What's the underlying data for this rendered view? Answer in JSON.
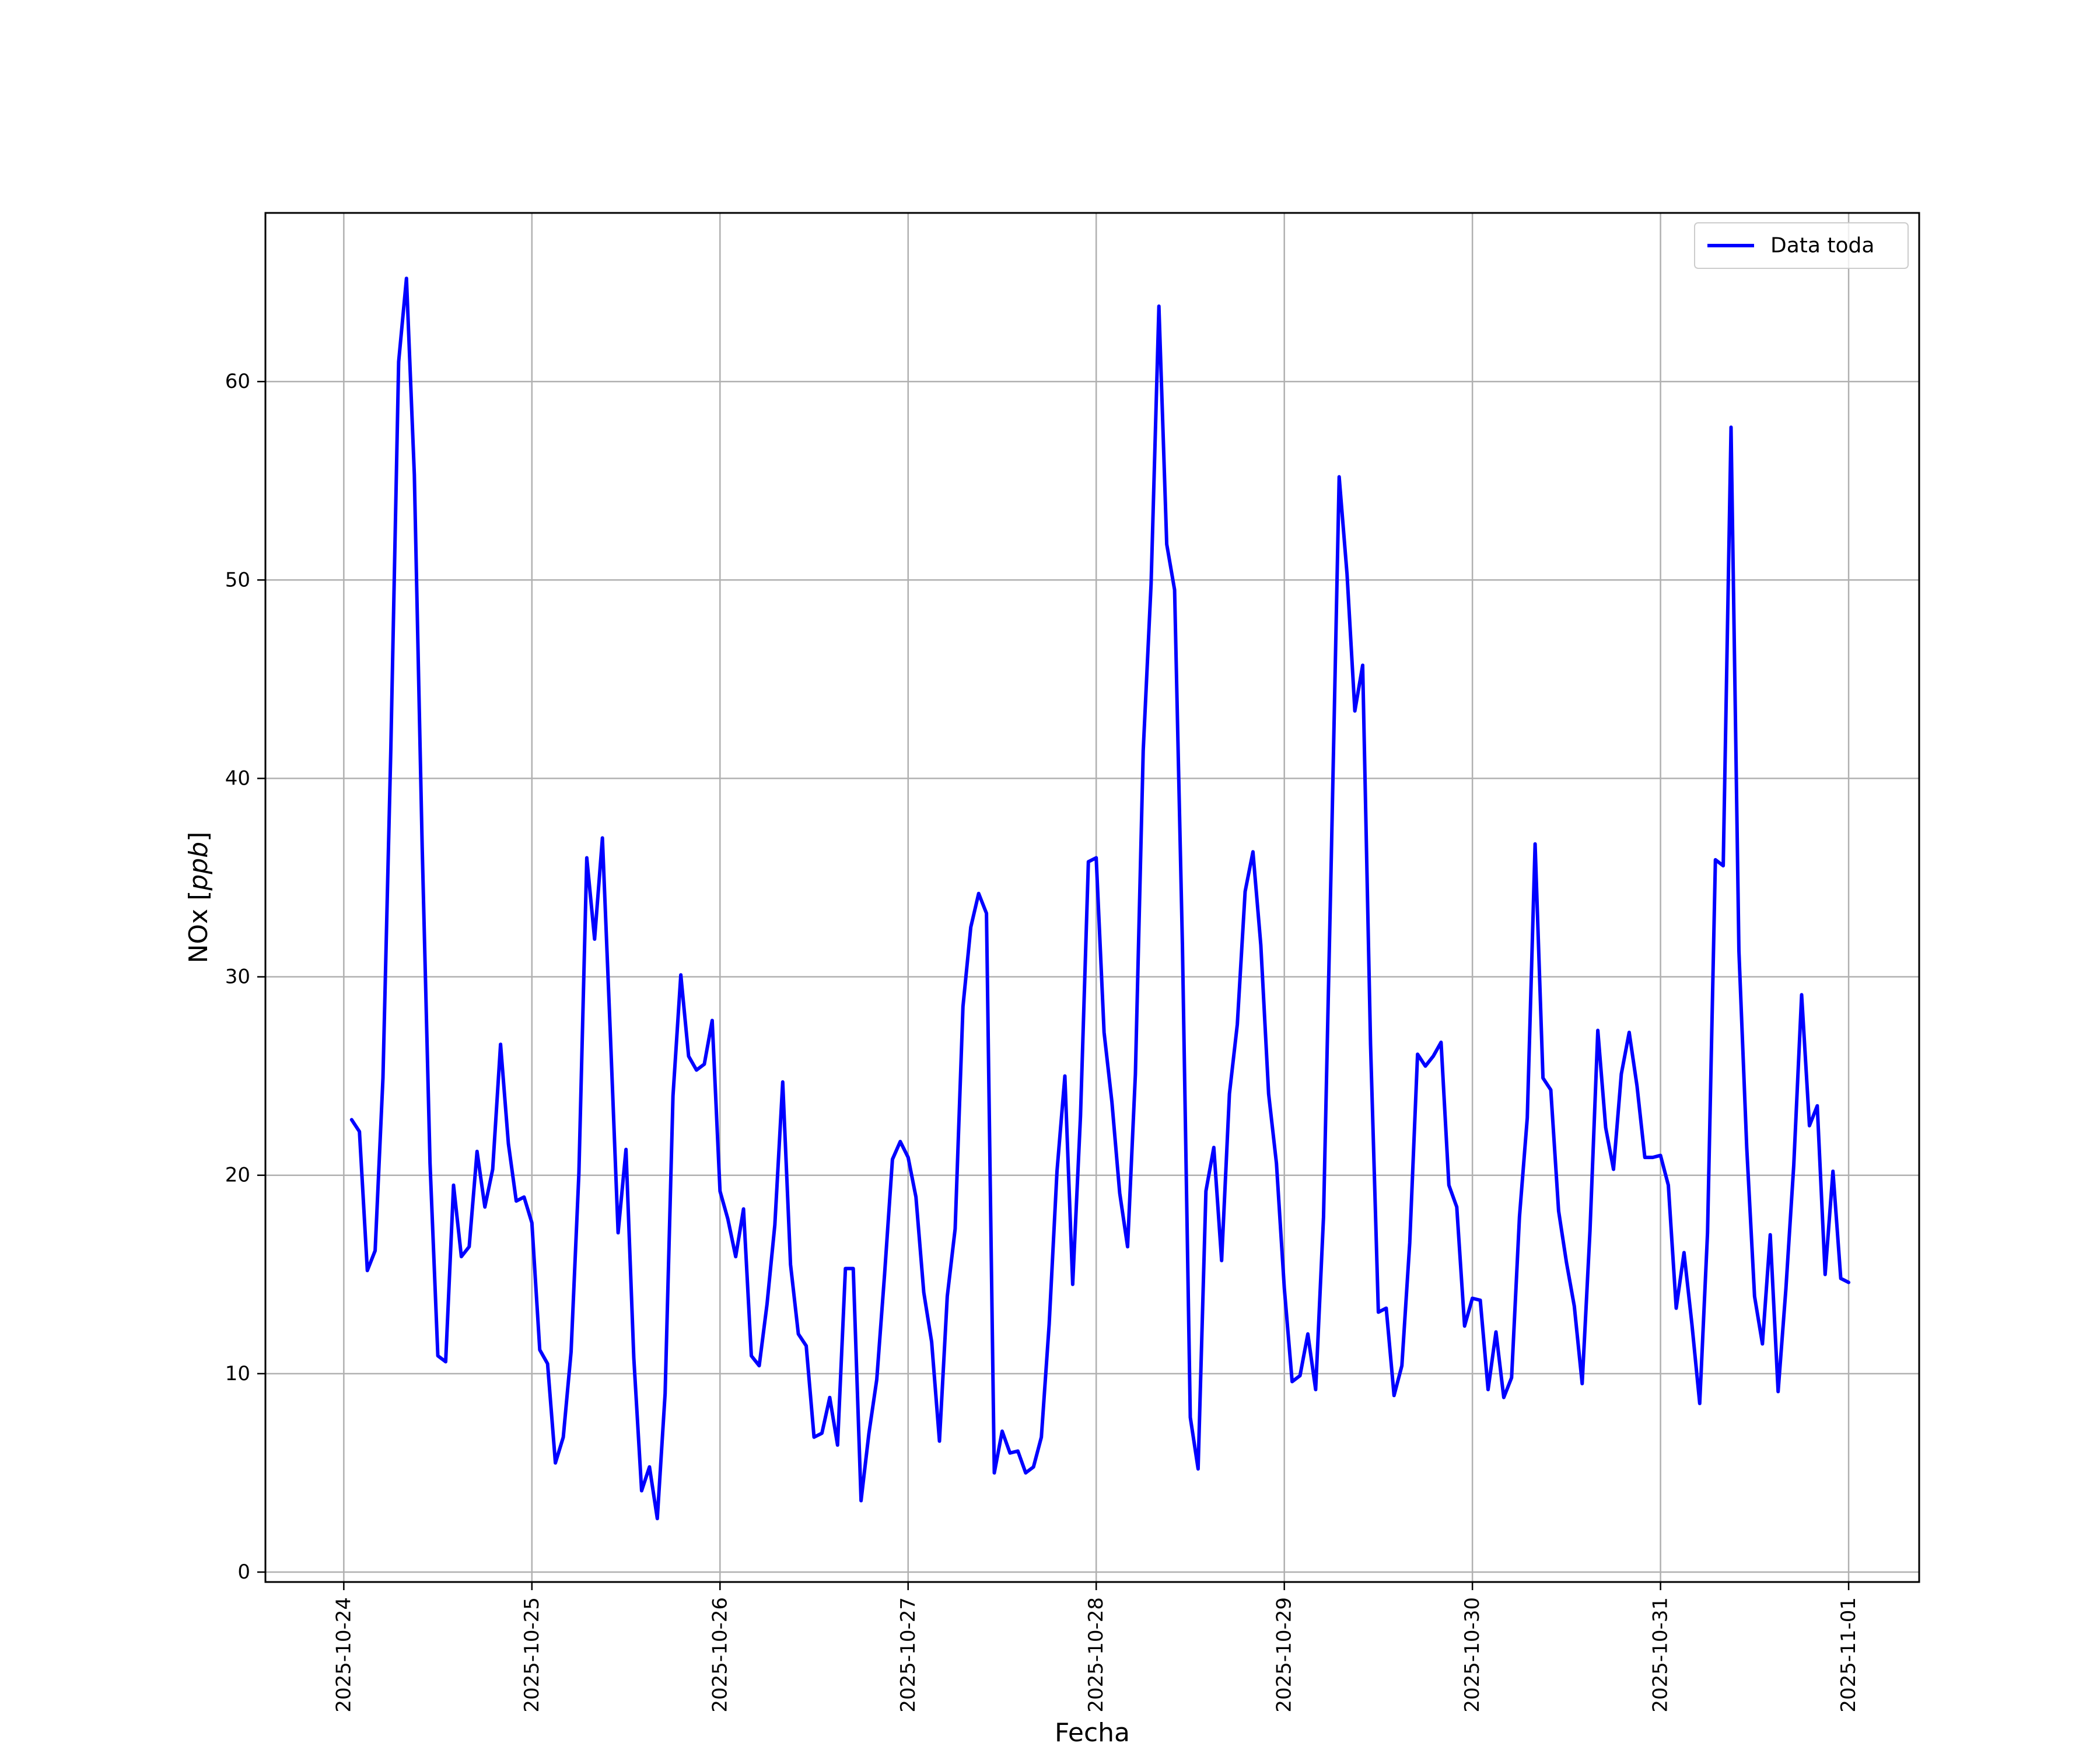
{
  "chart_data": {
    "type": "line",
    "title": "",
    "xlabel": "Fecha",
    "ylabel_text": "NOx [",
    "ylabel_unit": "ppb",
    "ylabel_close": "]",
    "x_ticks": [
      "2025-10-24",
      "2025-10-25",
      "2025-10-26",
      "2025-10-27",
      "2025-10-28",
      "2025-10-29",
      "2025-10-30",
      "2025-10-31",
      "2025-11-01"
    ],
    "y_ticks": [
      0,
      10,
      20,
      30,
      40,
      50,
      60
    ],
    "xlim": [
      "2025-10-23T14:00",
      "2025-11-01T09:00"
    ],
    "ylim": [
      -0.5,
      68.5
    ],
    "grid": true,
    "legend_position": "top-right",
    "series_color": "#0000ff",
    "series": [
      {
        "name": "Data toda",
        "x": [
          "2025-10-24T01:00",
          "2025-10-24T02:00",
          "2025-10-24T03:00",
          "2025-10-24T04:00",
          "2025-10-24T05:00",
          "2025-10-24T06:00",
          "2025-10-24T07:00",
          "2025-10-24T08:00",
          "2025-10-24T09:00",
          "2025-10-24T10:00",
          "2025-10-24T11:00",
          "2025-10-24T12:00",
          "2025-10-24T13:00",
          "2025-10-24T14:00",
          "2025-10-24T15:00",
          "2025-10-24T16:00",
          "2025-10-24T17:00",
          "2025-10-24T18:00",
          "2025-10-24T19:00",
          "2025-10-24T20:00",
          "2025-10-24T21:00",
          "2025-10-24T22:00",
          "2025-10-24T23:00",
          "2025-10-25T00:00",
          "2025-10-25T01:00",
          "2025-10-25T02:00",
          "2025-10-25T03:00",
          "2025-10-25T04:00",
          "2025-10-25T05:00",
          "2025-10-25T06:00",
          "2025-10-25T07:00",
          "2025-10-25T08:00",
          "2025-10-25T09:00",
          "2025-10-25T10:00",
          "2025-10-25T11:00",
          "2025-10-25T12:00",
          "2025-10-25T13:00",
          "2025-10-25T14:00",
          "2025-10-25T15:00",
          "2025-10-25T16:00",
          "2025-10-25T17:00",
          "2025-10-25T18:00",
          "2025-10-25T19:00",
          "2025-10-25T20:00",
          "2025-10-25T21:00",
          "2025-10-25T22:00",
          "2025-10-25T23:00",
          "2025-10-26T00:00",
          "2025-10-26T01:00",
          "2025-10-26T02:00",
          "2025-10-26T03:00",
          "2025-10-26T04:00",
          "2025-10-26T05:00",
          "2025-10-26T06:00",
          "2025-10-26T07:00",
          "2025-10-26T08:00",
          "2025-10-26T09:00",
          "2025-10-26T10:00",
          "2025-10-26T11:00",
          "2025-10-26T12:00",
          "2025-10-26T13:00",
          "2025-10-26T14:00",
          "2025-10-26T15:00",
          "2025-10-26T16:00",
          "2025-10-26T17:00",
          "2025-10-26T18:00",
          "2025-10-26T19:00",
          "2025-10-26T20:00",
          "2025-10-26T21:00",
          "2025-10-26T22:00",
          "2025-10-26T23:00",
          "2025-10-27T00:00",
          "2025-10-27T01:00",
          "2025-10-27T02:00",
          "2025-10-27T03:00",
          "2025-10-27T04:00",
          "2025-10-27T05:00",
          "2025-10-27T06:00",
          "2025-10-27T07:00",
          "2025-10-27T08:00",
          "2025-10-27T09:00",
          "2025-10-27T10:00",
          "2025-10-27T11:00",
          "2025-10-27T12:00",
          "2025-10-27T13:00",
          "2025-10-27T14:00",
          "2025-10-27T15:00",
          "2025-10-27T16:00",
          "2025-10-27T17:00",
          "2025-10-27T18:00",
          "2025-10-27T19:00",
          "2025-10-27T20:00",
          "2025-10-27T21:00",
          "2025-10-27T22:00",
          "2025-10-27T23:00",
          "2025-10-28T00:00",
          "2025-10-28T01:00",
          "2025-10-28T02:00",
          "2025-10-28T03:00",
          "2025-10-28T04:00",
          "2025-10-28T05:00",
          "2025-10-28T06:00",
          "2025-10-28T07:00",
          "2025-10-28T08:00",
          "2025-10-28T09:00",
          "2025-10-28T10:00",
          "2025-10-28T11:00",
          "2025-10-28T12:00",
          "2025-10-28T13:00",
          "2025-10-28T14:00",
          "2025-10-28T15:00",
          "2025-10-28T16:00",
          "2025-10-28T17:00",
          "2025-10-28T18:00",
          "2025-10-28T19:00",
          "2025-10-28T20:00",
          "2025-10-28T21:00",
          "2025-10-28T22:00",
          "2025-10-28T23:00",
          "2025-10-29T00:00",
          "2025-10-29T01:00",
          "2025-10-29T02:00",
          "2025-10-29T03:00",
          "2025-10-29T04:00",
          "2025-10-29T05:00",
          "2025-10-29T06:00",
          "2025-10-29T07:00",
          "2025-10-29T08:00",
          "2025-10-29T09:00",
          "2025-10-29T10:00",
          "2025-10-29T11:00",
          "2025-10-29T12:00",
          "2025-10-29T13:00",
          "2025-10-29T14:00",
          "2025-10-29T15:00",
          "2025-10-29T16:00",
          "2025-10-29T17:00",
          "2025-10-29T18:00",
          "2025-10-29T19:00",
          "2025-10-29T20:00",
          "2025-10-29T21:00",
          "2025-10-29T22:00",
          "2025-10-29T23:00",
          "2025-10-30T00:00",
          "2025-10-30T01:00",
          "2025-10-30T02:00",
          "2025-10-30T03:00",
          "2025-10-30T04:00",
          "2025-10-30T05:00",
          "2025-10-30T06:00",
          "2025-10-30T07:00",
          "2025-10-30T08:00",
          "2025-10-30T09:00",
          "2025-10-30T10:00",
          "2025-10-30T11:00",
          "2025-10-30T12:00",
          "2025-10-30T13:00",
          "2025-10-30T14:00",
          "2025-10-30T15:00",
          "2025-10-30T16:00",
          "2025-10-30T17:00",
          "2025-10-30T18:00",
          "2025-10-30T19:00",
          "2025-10-30T20:00",
          "2025-10-30T21:00",
          "2025-10-30T22:00",
          "2025-10-30T23:00",
          "2025-10-31T00:00",
          "2025-10-31T01:00",
          "2025-10-31T02:00",
          "2025-10-31T03:00",
          "2025-10-31T04:00",
          "2025-10-31T05:00",
          "2025-10-31T06:00",
          "2025-10-31T07:00",
          "2025-10-31T08:00",
          "2025-10-31T09:00",
          "2025-10-31T10:00",
          "2025-10-31T11:00",
          "2025-10-31T12:00",
          "2025-10-31T13:00",
          "2025-10-31T14:00",
          "2025-10-31T15:00",
          "2025-10-31T16:00",
          "2025-10-31T17:00",
          "2025-10-31T18:00",
          "2025-10-31T19:00",
          "2025-10-31T20:00",
          "2025-10-31T21:00",
          "2025-10-31T22:00",
          "2025-10-31T23:00",
          "2025-11-01T00:00"
        ],
        "y": [
          22.8,
          22.2,
          15.2,
          16.2,
          24.9,
          41.5,
          61.0,
          65.2,
          55.3,
          36.6,
          20.6,
          10.9,
          10.6,
          19.5,
          15.9,
          16.4,
          21.2,
          18.4,
          20.3,
          26.6,
          21.6,
          18.7,
          18.9,
          17.6,
          11.2,
          10.5,
          5.5,
          6.8,
          11.1,
          20.1,
          36.0,
          31.9,
          37.0,
          27.2,
          17.1,
          21.3,
          10.8,
          4.1,
          5.3,
          2.7,
          9.0,
          24.0,
          30.1,
          26.0,
          25.3,
          25.6,
          27.8,
          19.2,
          17.8,
          15.9,
          18.3,
          10.9,
          10.4,
          13.5,
          17.5,
          24.7,
          15.5,
          12.0,
          11.4,
          6.8,
          7.0,
          8.8,
          6.4,
          15.3,
          15.3,
          3.6,
          7.0,
          9.7,
          15.0,
          20.8,
          21.7,
          20.9,
          18.9,
          14.1,
          11.6,
          6.6,
          13.9,
          17.3,
          28.5,
          32.5,
          34.2,
          33.2,
          5.0,
          7.1,
          6.0,
          6.1,
          5.0,
          5.3,
          6.8,
          12.5,
          20.2,
          25.0,
          14.5,
          23.0,
          35.8,
          36.0,
          27.2,
          23.7,
          19.1,
          16.4,
          25.1,
          41.4,
          49.8,
          63.8,
          51.8,
          49.5,
          31.6,
          7.8,
          5.2,
          19.2,
          21.4,
          15.7,
          24.1,
          27.6,
          34.3,
          36.3,
          31.6,
          24.1,
          20.6,
          14.3,
          9.6,
          9.9,
          12.0,
          9.2,
          17.9,
          36.1,
          55.2,
          50.3,
          43.4,
          45.7,
          26.6,
          13.1,
          13.3,
          8.9,
          10.4,
          16.6,
          26.1,
          25.5,
          26.0,
          26.7,
          19.5,
          18.4,
          12.4,
          13.8,
          13.7,
          9.2,
          12.1,
          8.8,
          9.8,
          17.9,
          22.9,
          36.7,
          24.9,
          24.3,
          18.2,
          15.6,
          13.4,
          9.5,
          17.2,
          27.3,
          22.4,
          20.3,
          25.1,
          27.2,
          24.5,
          20.9,
          20.9,
          21.0,
          19.5,
          13.3,
          16.1,
          12.5,
          8.5,
          17.1,
          35.9,
          35.6,
          57.7,
          31.3,
          21.4,
          13.9,
          11.5,
          17.0,
          9.1,
          14.3,
          20.5,
          29.1,
          22.5,
          23.5,
          15.0,
          20.2,
          14.8,
          14.6
        ]
      }
    ]
  }
}
